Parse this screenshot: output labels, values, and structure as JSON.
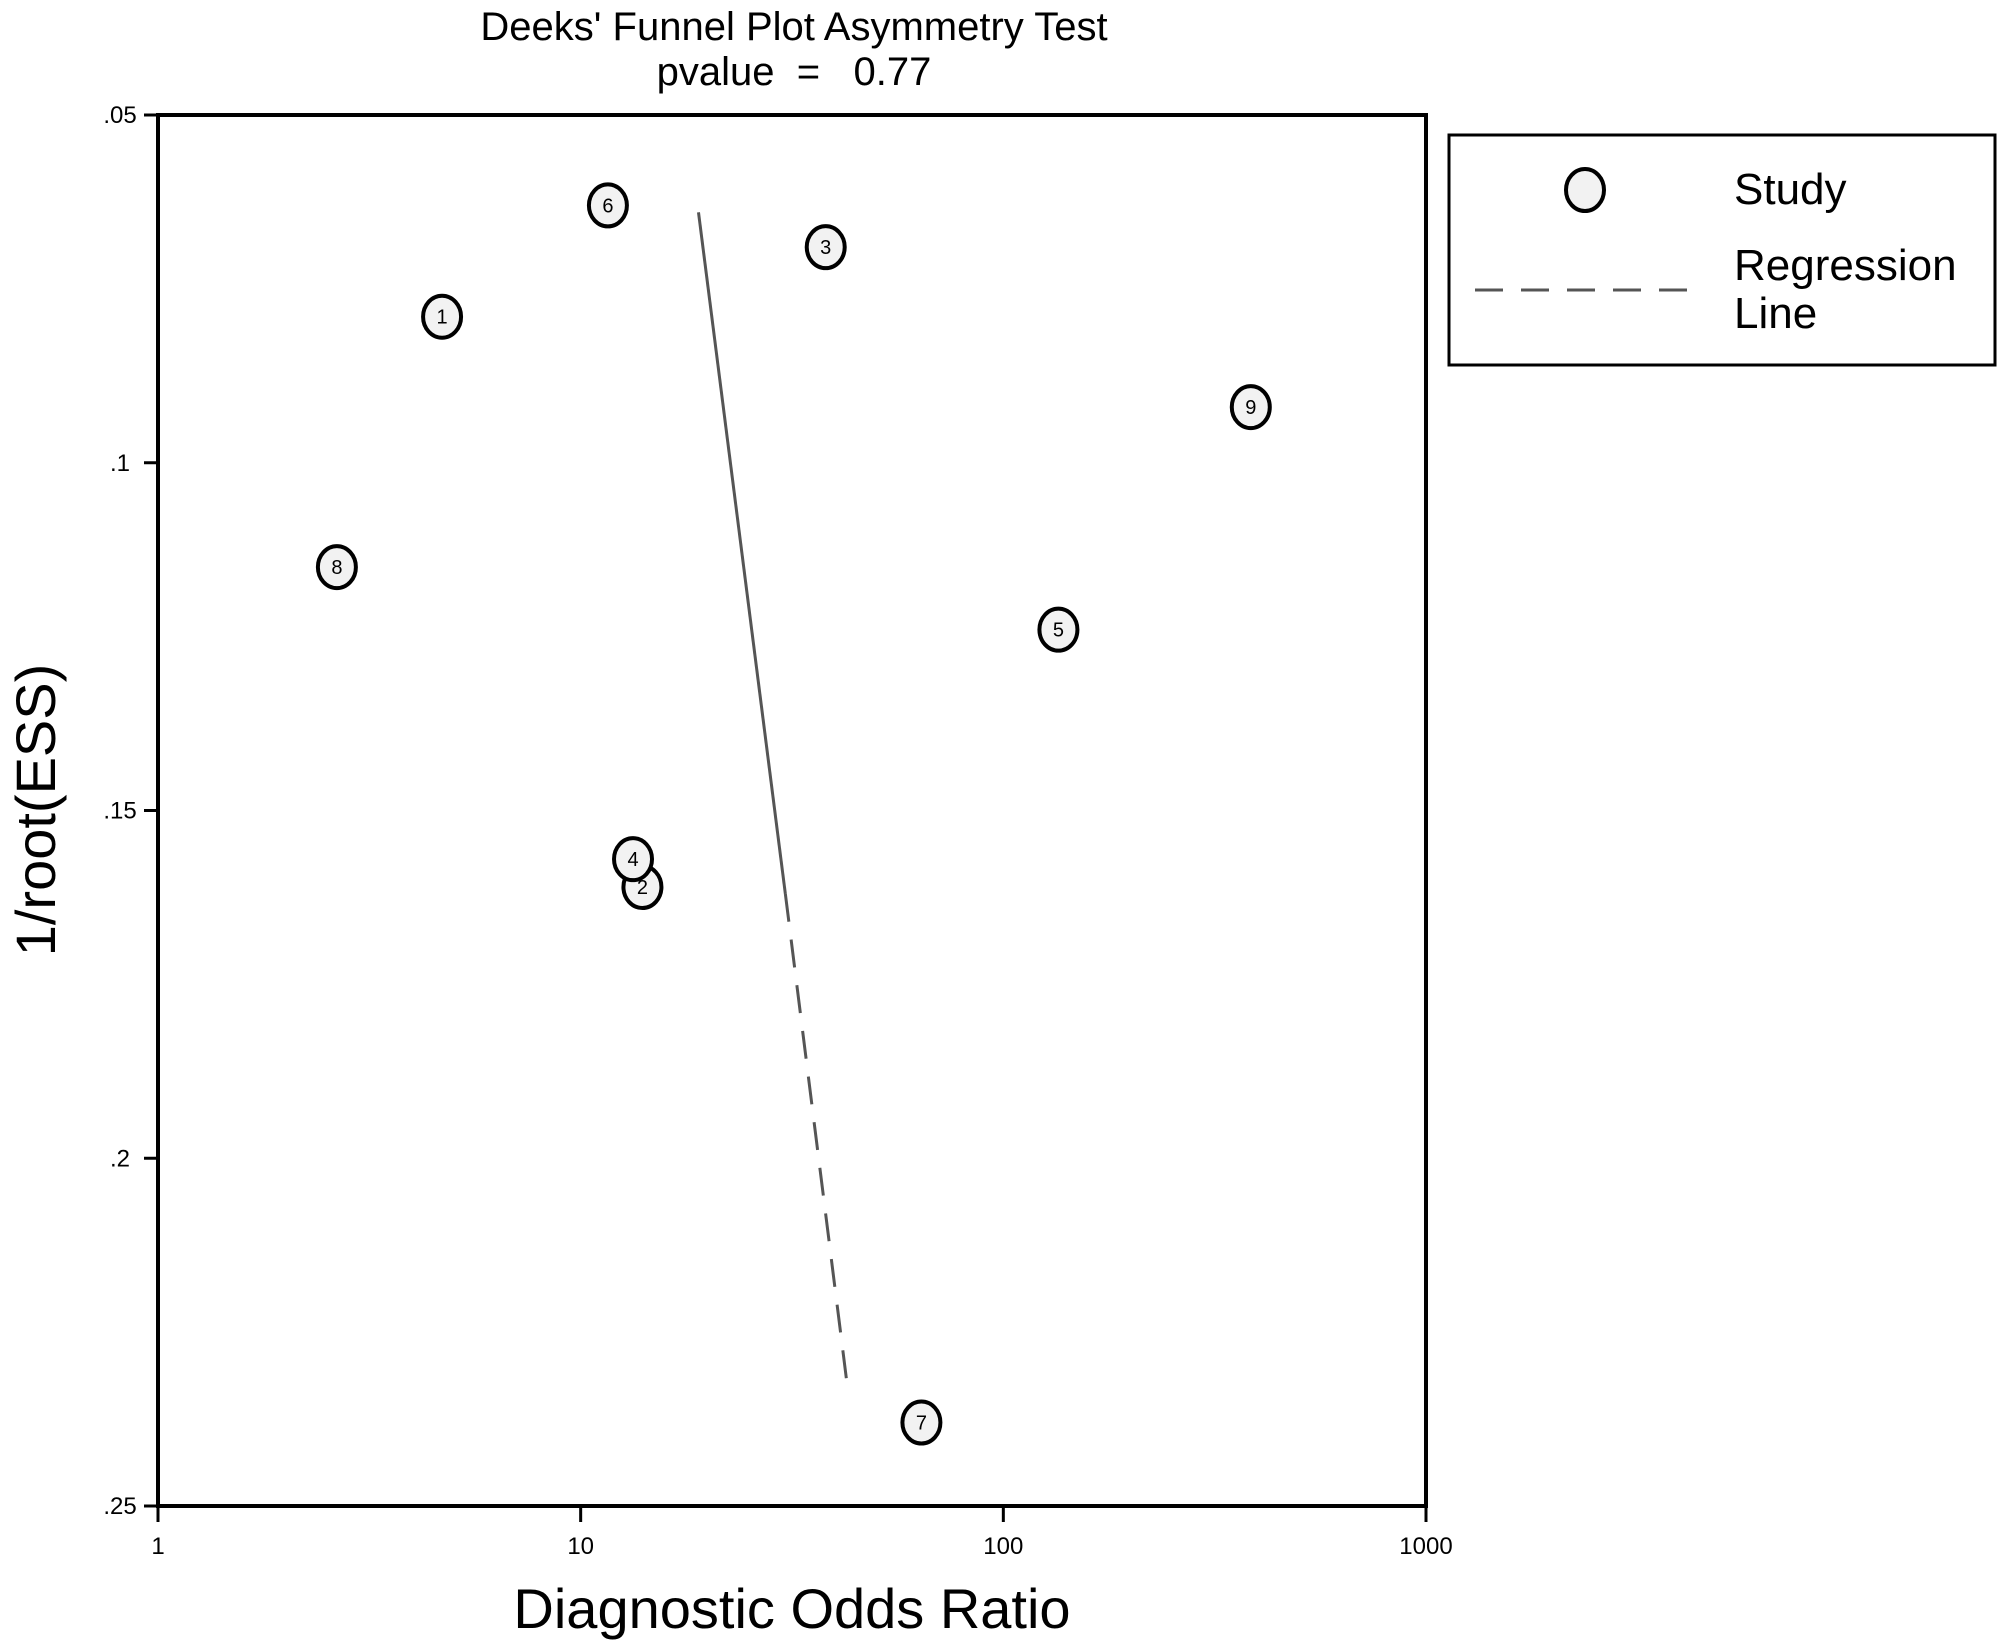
{
  "chart_data": {
    "type": "scatter",
    "title": "Deeks' Funnel Plot Asymmetry Test",
    "subtitle": "pvalue  =   0.77",
    "xlabel": "Diagnostic Odds Ratio",
    "ylabel": "1/root(ESS)",
    "x_scale": "log",
    "y_reversed": true,
    "xlim": [
      1,
      1000
    ],
    "ylim": [
      0.05,
      0.25
    ],
    "x_ticks": [
      {
        "value": 1,
        "label": "1"
      },
      {
        "value": 10,
        "label": "10"
      },
      {
        "value": 100,
        "label": "100"
      },
      {
        "value": 1000,
        "label": "1000"
      }
    ],
    "y_ticks": [
      {
        "value": 0.05,
        "label": ".05"
      },
      {
        "value": 0.1,
        "label": ".1"
      },
      {
        "value": 0.15,
        "label": ".15"
      },
      {
        "value": 0.2,
        "label": ".2"
      },
      {
        "value": 0.25,
        "label": ".25"
      }
    ],
    "grid": false,
    "legend_position": "top-right",
    "series": [
      {
        "name": "Study",
        "points": [
          {
            "label": "1",
            "x": 4.7,
            "y": 0.079
          },
          {
            "label": "2",
            "x": 14.0,
            "y": 0.161
          },
          {
            "label": "3",
            "x": 38.0,
            "y": 0.069
          },
          {
            "label": "4",
            "x": 13.3,
            "y": 0.157
          },
          {
            "label": "5",
            "x": 135.0,
            "y": 0.124
          },
          {
            "label": "6",
            "x": 11.6,
            "y": 0.063
          },
          {
            "label": "7",
            "x": 64.0,
            "y": 0.238
          },
          {
            "label": "8",
            "x": 2.65,
            "y": 0.115
          },
          {
            "label": "9",
            "x": 385.0,
            "y": 0.092
          }
        ]
      },
      {
        "name": "Regression Line",
        "solid_segment": [
          {
            "x": 19.0,
            "y": 0.064
          },
          {
            "x": 30.5,
            "y": 0.162
          }
        ],
        "dashed_segment": [
          {
            "x": 30.5,
            "y": 0.162
          },
          {
            "x": 43.0,
            "y": 0.234
          }
        ]
      }
    ],
    "legend": {
      "entries": [
        {
          "symbol": "circle",
          "lines": [
            "Study"
          ]
        },
        {
          "symbol": "dashed-line",
          "lines": [
            "Regression",
            "Line"
          ]
        }
      ]
    },
    "colors": {
      "axis": "#000000",
      "marker_fill": "#f2f2f2",
      "marker_stroke": "#000000",
      "regression_line": "#555555"
    }
  }
}
